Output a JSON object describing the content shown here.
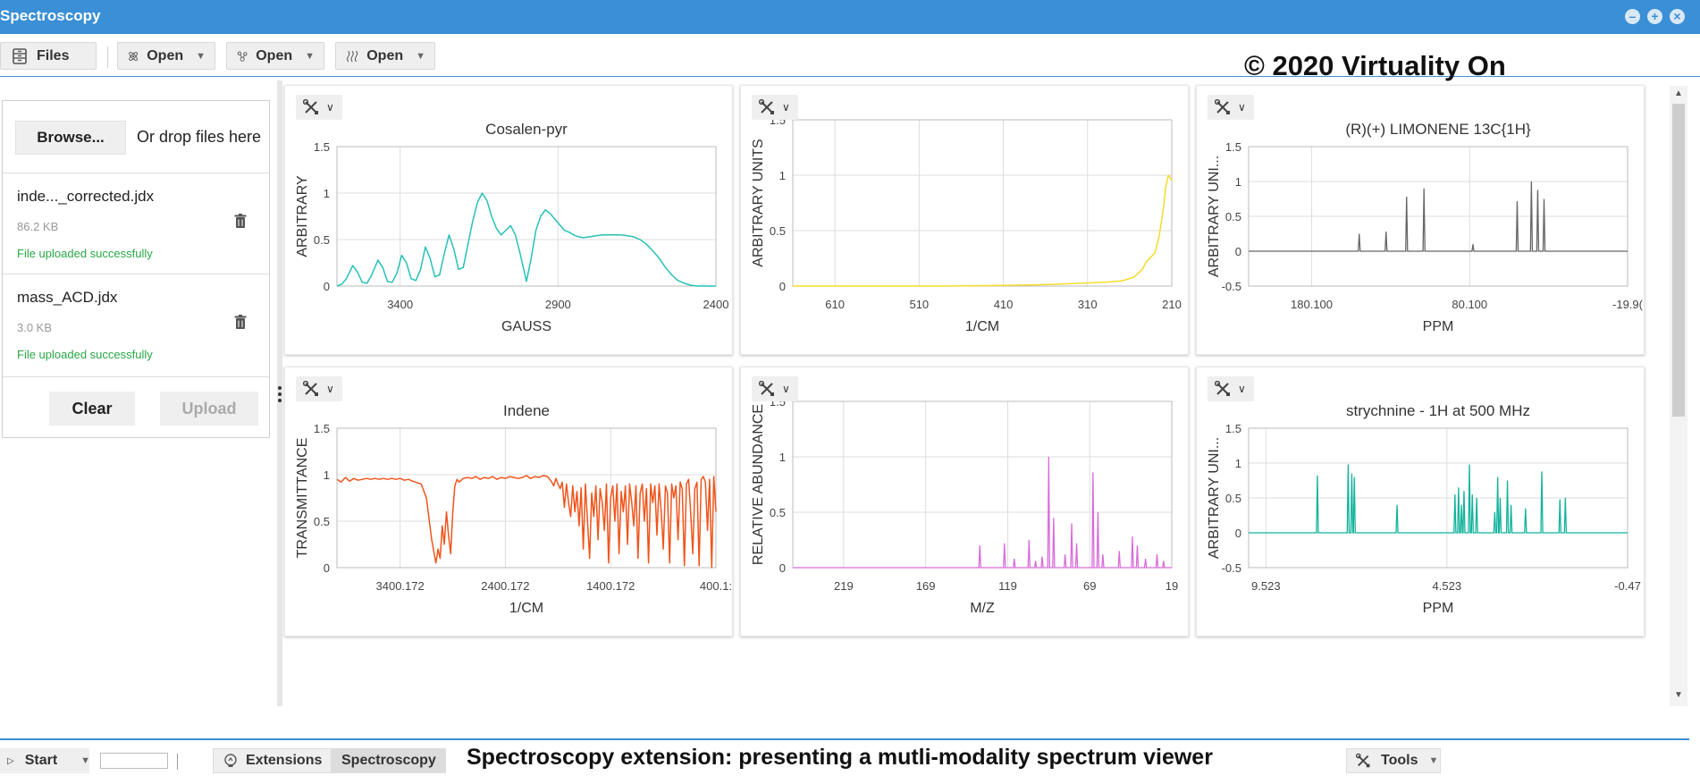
{
  "window": {
    "title": "Spectroscopy"
  },
  "toolbar": {
    "files_label": "Files",
    "open1_label": "Open",
    "open2_label": "Open",
    "open3_label": "Open",
    "copyright": "© 2020 Virtuality On"
  },
  "filepanel": {
    "browse_label": "Browse...",
    "drop_text": "Or drop files here",
    "files": [
      {
        "name": "inde..._corrected.jdx",
        "size": "86.2 KB",
        "status": "File uploaded successfully"
      },
      {
        "name": "mass_ACD.jdx",
        "size": "3.0 KB",
        "status": "File uploaded successfully"
      }
    ],
    "clear_label": "Clear",
    "upload_label": "Upload"
  },
  "taskbar": {
    "start_label": "Start",
    "extensions_label": "Extensions",
    "spectroscopy_label": "Spectroscopy",
    "caption": "Spectroscopy extension: presenting a mutli-modality spectrum viewer",
    "tools_label": "Tools"
  },
  "colors": {
    "titlebar": "#3a8fd6",
    "cyan": "#26c1b7",
    "yellow": "#f4dc2a",
    "gray": "#666666",
    "orange": "#f0551c",
    "magenta": "#d96ad9",
    "teal": "#11b39b"
  },
  "chart_data": [
    {
      "type": "line",
      "title": "Cosalen-pyr",
      "xlabel": "GAUSS",
      "ylabel": "ARBITRARY",
      "xlim": [
        3600,
        2400
      ],
      "ylim": [
        0,
        1.5
      ],
      "xticks": [
        {
          "v": 3400,
          "label": "3400"
        },
        {
          "v": 2900,
          "label": "2900"
        },
        {
          "v": 2400,
          "label": "2400"
        }
      ],
      "yticks": [
        {
          "v": 0,
          "label": "0"
        },
        {
          "v": 0.5,
          "label": "0.5"
        },
        {
          "v": 1,
          "label": "1"
        },
        {
          "v": 1.5,
          "label": "1.5"
        }
      ],
      "color": "#26c1b7",
      "series": [
        {
          "x": [
            3600,
            3585,
            3570,
            3550,
            3535,
            3520,
            3505,
            3490,
            3470,
            3455,
            3440,
            3425,
            3410,
            3395,
            3380,
            3365,
            3350,
            3335,
            3320,
            3305,
            3290,
            3275,
            3260,
            3245,
            3230,
            3215,
            3200,
            3185,
            3170,
            3155,
            3140,
            3125,
            3110,
            3095,
            3080,
            3065,
            3050,
            3035,
            3020,
            3000,
            2985,
            2970,
            2955,
            2940,
            2925,
            2910,
            2895,
            2880,
            2865,
            2850,
            2835,
            2820,
            2800,
            2780,
            2760,
            2740,
            2720,
            2700,
            2680,
            2660,
            2640,
            2620,
            2600,
            2580,
            2560,
            2540,
            2520,
            2500,
            2480,
            2460,
            2440,
            2420,
            2400
          ],
          "y": [
            0.0,
            0.02,
            0.08,
            0.22,
            0.15,
            0.04,
            0.03,
            0.12,
            0.28,
            0.2,
            0.05,
            0.04,
            0.14,
            0.33,
            0.25,
            0.08,
            0.06,
            0.18,
            0.42,
            0.3,
            0.1,
            0.12,
            0.35,
            0.55,
            0.4,
            0.18,
            0.2,
            0.45,
            0.7,
            0.9,
            1.0,
            0.92,
            0.75,
            0.62,
            0.55,
            0.6,
            0.65,
            0.55,
            0.35,
            0.05,
            0.3,
            0.6,
            0.75,
            0.82,
            0.78,
            0.72,
            0.66,
            0.6,
            0.58,
            0.55,
            0.53,
            0.52,
            0.53,
            0.54,
            0.55,
            0.55,
            0.55,
            0.55,
            0.54,
            0.53,
            0.5,
            0.45,
            0.38,
            0.3,
            0.2,
            0.12,
            0.06,
            0.03,
            0.01,
            0.0,
            0.0,
            0.0,
            0.0
          ]
        }
      ]
    },
    {
      "type": "line",
      "title": "",
      "xlabel": "1/CM",
      "ylabel": "ARBITRARY UNITS",
      "xlim": [
        660,
        210
      ],
      "ylim": [
        0,
        1.5
      ],
      "xticks": [
        {
          "v": 610,
          "label": "610"
        },
        {
          "v": 510,
          "label": "510"
        },
        {
          "v": 410,
          "label": "410"
        },
        {
          "v": 310,
          "label": "310"
        },
        {
          "v": 210,
          "label": "210"
        }
      ],
      "yticks": [
        {
          "v": 0,
          "label": "0"
        },
        {
          "v": 0.5,
          "label": "0.5"
        },
        {
          "v": 1,
          "label": "1"
        },
        {
          "v": 1.5,
          "label": "1.5"
        }
      ],
      "color": "#f4dc2a",
      "series": [
        {
          "x": [
            660,
            600,
            540,
            480,
            420,
            380,
            350,
            320,
            290,
            270,
            255,
            245,
            240,
            235,
            230,
            225,
            220,
            217,
            214,
            212,
            210
          ],
          "y": [
            0.0,
            0.0,
            0.0,
            0.0,
            0.005,
            0.01,
            0.015,
            0.025,
            0.035,
            0.045,
            0.08,
            0.15,
            0.22,
            0.26,
            0.3,
            0.45,
            0.7,
            0.9,
            1.0,
            0.98,
            0.95
          ]
        }
      ]
    },
    {
      "type": "line",
      "title": "(R)(+) LIMONENE 13C{1H}",
      "xlabel": "PPM",
      "ylabel": "ARBITRARY UNI...",
      "xlim": [
        220,
        -19.9
      ],
      "ylim": [
        -0.5,
        1.5
      ],
      "xticks": [
        {
          "v": 180.1,
          "label": "180.100"
        },
        {
          "v": 80.1,
          "label": "80.100"
        },
        {
          "v": -19.9,
          "label": "-19.9("
        }
      ],
      "yticks": [
        {
          "v": -0.5,
          "label": "-0.5"
        },
        {
          "v": 0,
          "label": "0"
        },
        {
          "v": 0.5,
          "label": "0.5"
        },
        {
          "v": 1,
          "label": "1"
        },
        {
          "v": 1.5,
          "label": "1.5"
        }
      ],
      "color": "#666666",
      "peaks": [
        {
          "x": 150,
          "h": 0.25
        },
        {
          "x": 133,
          "h": 0.28
        },
        {
          "x": 120,
          "h": 0.78
        },
        {
          "x": 109,
          "h": 0.9
        },
        {
          "x": 78,
          "h": 0.1
        },
        {
          "x": 50,
          "h": 0.72
        },
        {
          "x": 41,
          "h": 1.0
        },
        {
          "x": 37,
          "h": 0.88
        },
        {
          "x": 33,
          "h": 0.75
        }
      ]
    },
    {
      "type": "line",
      "title": "Indene",
      "xlabel": "1/CM",
      "ylabel": "TRANSMITTANCE",
      "xlim": [
        4000,
        400
      ],
      "ylim": [
        0,
        1.5
      ],
      "xticks": [
        {
          "v": 3400.172,
          "label": "3400.172"
        },
        {
          "v": 2400.172,
          "label": "2400.172"
        },
        {
          "v": 1400.172,
          "label": "1400.172"
        },
        {
          "v": 400.172,
          "label": "400.1:"
        }
      ],
      "yticks": [
        {
          "v": 0,
          "label": "0"
        },
        {
          "v": 0.5,
          "label": "0.5"
        },
        {
          "v": 1,
          "label": "1"
        },
        {
          "v": 1.5,
          "label": "1.5"
        }
      ],
      "color": "#f0551c",
      "series": [
        {
          "x": [
            4000,
            3960,
            3920,
            3880,
            3840,
            3800,
            3760,
            3720,
            3680,
            3640,
            3600,
            3560,
            3520,
            3480,
            3440,
            3400,
            3360,
            3320,
            3280,
            3200,
            3150,
            3100,
            3060,
            3040,
            3020,
            3000,
            2980,
            2960,
            2940,
            2920,
            2900,
            2880,
            2860,
            2840,
            2800,
            2760,
            2720,
            2680,
            2640,
            2600,
            2560,
            2520,
            2480,
            2440,
            2400,
            2360,
            2320,
            2280,
            2240,
            2200,
            2160,
            2120,
            2080,
            2040,
            2000,
            1960,
            1940,
            1920,
            1900,
            1880,
            1860,
            1840,
            1820,
            1800,
            1780,
            1760,
            1740,
            1720,
            1700,
            1680,
            1660,
            1640,
            1620,
            1600,
            1580,
            1560,
            1540,
            1520,
            1500,
            1480,
            1460,
            1440,
            1420,
            1400,
            1380,
            1360,
            1340,
            1320,
            1300,
            1280,
            1260,
            1240,
            1220,
            1200,
            1180,
            1160,
            1140,
            1120,
            1100,
            1080,
            1060,
            1040,
            1020,
            1000,
            980,
            960,
            940,
            920,
            900,
            880,
            860,
            840,
            820,
            800,
            780,
            760,
            740,
            720,
            700,
            680,
            660,
            640,
            620,
            600,
            580,
            560,
            540,
            520,
            500,
            480,
            460,
            440,
            420,
            400
          ],
          "y": [
            0.95,
            0.92,
            0.97,
            0.93,
            0.96,
            0.94,
            0.95,
            0.96,
            0.95,
            0.96,
            0.95,
            0.96,
            0.95,
            0.96,
            0.95,
            0.96,
            0.94,
            0.95,
            0.93,
            0.9,
            0.75,
            0.3,
            0.05,
            0.2,
            0.1,
            0.45,
            0.25,
            0.6,
            0.35,
            0.15,
            0.6,
            0.88,
            0.95,
            0.92,
            0.96,
            0.97,
            0.96,
            0.98,
            0.95,
            0.97,
            0.96,
            0.98,
            0.95,
            0.97,
            0.96,
            0.98,
            0.97,
            0.96,
            0.97,
            0.99,
            0.96,
            0.98,
            0.97,
            0.99,
            0.98,
            0.92,
            0.88,
            0.96,
            0.9,
            0.85,
            0.92,
            0.65,
            0.9,
            0.7,
            0.55,
            0.88,
            0.6,
            0.82,
            0.45,
            0.86,
            0.2,
            0.9,
            0.5,
            0.1,
            0.8,
            0.55,
            0.88,
            0.3,
            0.85,
            0.7,
            0.4,
            0.9,
            0.05,
            0.75,
            0.88,
            0.5,
            0.9,
            0.15,
            0.82,
            0.6,
            0.88,
            0.25,
            0.9,
            0.7,
            0.45,
            0.88,
            0.1,
            0.8,
            0.9,
            0.5,
            0.85,
            0.05,
            0.9,
            0.7,
            0.88,
            0.35,
            0.9,
            0.6,
            0.2,
            0.88,
            0.8,
            0.05,
            0.9,
            0.75,
            0.88,
            0.3,
            0.92,
            0.85,
            0.02,
            0.9,
            0.95,
            0.6,
            0.15,
            0.85,
            0.92,
            0.02,
            0.95,
            0.98,
            0.92,
            0.4,
            0.95,
            0.0,
            0.98,
            0.6
          ]
        }
      ]
    },
    {
      "type": "line",
      "title": "",
      "xlabel": "M/Z",
      "ylabel": "RELATIVE ABUNDANCE",
      "xlim": [
        250,
        19
      ],
      "ylim": [
        0,
        1.5
      ],
      "xticks": [
        {
          "v": 219,
          "label": "219"
        },
        {
          "v": 169,
          "label": "169"
        },
        {
          "v": 119,
          "label": "119"
        },
        {
          "v": 69,
          "label": "69"
        },
        {
          "v": 19,
          "label": "19"
        }
      ],
      "yticks": [
        {
          "v": 0,
          "label": "0"
        },
        {
          "v": 0.5,
          "label": "0.5"
        },
        {
          "v": 1,
          "label": "1"
        },
        {
          "v": 1.5,
          "label": "1.5"
        }
      ],
      "color": "#d96ad9",
      "peaks": [
        {
          "x": 136,
          "h": 0.2
        },
        {
          "x": 121,
          "h": 0.22
        },
        {
          "x": 115,
          "h": 0.08
        },
        {
          "x": 106,
          "h": 0.25
        },
        {
          "x": 102,
          "h": 0.06
        },
        {
          "x": 98,
          "h": 0.1
        },
        {
          "x": 94,
          "h": 1.0
        },
        {
          "x": 91,
          "h": 0.45
        },
        {
          "x": 84,
          "h": 0.12
        },
        {
          "x": 80,
          "h": 0.4
        },
        {
          "x": 77,
          "h": 0.22
        },
        {
          "x": 67,
          "h": 0.86
        },
        {
          "x": 64,
          "h": 0.5
        },
        {
          "x": 61,
          "h": 0.12
        },
        {
          "x": 51,
          "h": 0.15
        },
        {
          "x": 43,
          "h": 0.28
        },
        {
          "x": 40,
          "h": 0.2
        },
        {
          "x": 35,
          "h": 0.08
        },
        {
          "x": 28,
          "h": 0.12
        },
        {
          "x": 24,
          "h": 0.06
        }
      ]
    },
    {
      "type": "line",
      "title": "strychnine - 1H at 500 MHz",
      "xlabel": "PPM",
      "ylabel": "ARBITRARY UNI...",
      "xlim": [
        10,
        -0.47
      ],
      "ylim": [
        -0.5,
        1.5
      ],
      "xticks": [
        {
          "v": 9.523,
          "label": "9.523"
        },
        {
          "v": 4.523,
          "label": "4.523"
        },
        {
          "v": -0.47,
          "label": "-0.47"
        }
      ],
      "yticks": [
        {
          "v": -0.5,
          "label": "-0.5"
        },
        {
          "v": 0,
          "label": "0"
        },
        {
          "v": 0.5,
          "label": "0.5"
        },
        {
          "v": 1,
          "label": "1"
        },
        {
          "v": 1.5,
          "label": "1.5"
        }
      ],
      "color": "#11b39b",
      "peaks": [
        {
          "x": 8.1,
          "h": 0.82
        },
        {
          "x": 7.25,
          "h": 0.98
        },
        {
          "x": 7.15,
          "h": 0.85
        },
        {
          "x": 7.08,
          "h": 0.8
        },
        {
          "x": 5.9,
          "h": 0.4
        },
        {
          "x": 4.3,
          "h": 0.55
        },
        {
          "x": 4.2,
          "h": 0.65
        },
        {
          "x": 4.12,
          "h": 0.4
        },
        {
          "x": 4.05,
          "h": 0.6
        },
        {
          "x": 3.9,
          "h": 0.98
        },
        {
          "x": 3.82,
          "h": 0.55
        },
        {
          "x": 3.7,
          "h": 0.5
        },
        {
          "x": 3.2,
          "h": 0.3
        },
        {
          "x": 3.12,
          "h": 0.8
        },
        {
          "x": 3.05,
          "h": 0.5
        },
        {
          "x": 2.85,
          "h": 0.75
        },
        {
          "x": 2.75,
          "h": 0.4
        },
        {
          "x": 2.35,
          "h": 0.35
        },
        {
          "x": 1.9,
          "h": 0.88
        },
        {
          "x": 1.4,
          "h": 0.48
        },
        {
          "x": 1.25,
          "h": 0.5
        }
      ]
    }
  ]
}
